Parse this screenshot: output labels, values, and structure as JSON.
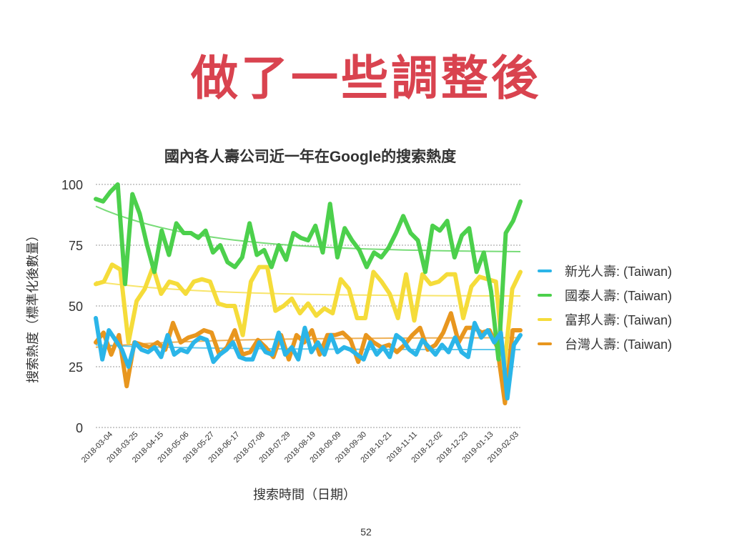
{
  "slide": {
    "title": "做了一些調整後",
    "page_number": "52"
  },
  "chart_data": {
    "type": "line",
    "title": "國內各人壽公司近一年在Google的搜索熱度",
    "xlabel": "搜索時間（日期）",
    "ylabel": "搜索熱度（標準化後數量）",
    "ylim": [
      0,
      100
    ],
    "yticks": [
      0,
      25,
      50,
      75,
      100
    ],
    "grid": true,
    "legend_position": "right",
    "x_tick_labels": [
      "2018-03-04",
      "2018-03-25",
      "2018-04-15",
      "2018-05-06",
      "2018-05-27",
      "2018-06-17",
      "2018-07-08",
      "2018-07-29",
      "2018-08-19",
      "2018-09-09",
      "2018-09-30",
      "2018-10-21",
      "2018-11-11",
      "2018-12-02",
      "2018-12-23",
      "2019-01-13",
      "2019-02-03"
    ],
    "series": [
      {
        "name": "新光人壽: (Taiwan)",
        "color": "#2bb5e8",
        "values": [
          45,
          28,
          40,
          36,
          32,
          25,
          35,
          32,
          31,
          33,
          29,
          38,
          30,
          32,
          31,
          35,
          37,
          36,
          27,
          30,
          32,
          35,
          29,
          28,
          28,
          35,
          31,
          30,
          39,
          30,
          33,
          28,
          41,
          31,
          35,
          30,
          38,
          31,
          33,
          32,
          30,
          28,
          35,
          30,
          33,
          29,
          38,
          36,
          32,
          30,
          36,
          33,
          30,
          34,
          31,
          37,
          31,
          29,
          43,
          37,
          40,
          35,
          39,
          12,
          34,
          38
        ]
      },
      {
        "name": "國泰人壽: (Taiwan)",
        "color": "#4cd04c",
        "values": [
          94,
          93,
          97,
          100,
          59,
          96,
          88,
          75,
          64,
          81,
          71,
          84,
          80,
          80,
          78,
          81,
          72,
          75,
          68,
          66,
          70,
          84,
          71,
          73,
          66,
          75,
          69,
          80,
          78,
          77,
          83,
          72,
          92,
          70,
          82,
          77,
          73,
          66,
          72,
          70,
          74,
          80,
          87,
          80,
          77,
          64,
          83,
          81,
          85,
          70,
          79,
          82,
          64,
          72,
          56,
          28,
          80,
          85,
          93
        ]
      },
      {
        "name": "富邦人壽: (Taiwan)",
        "color": "#f5dc3a",
        "values": [
          59,
          60,
          67,
          65,
          35,
          52,
          57,
          66,
          55,
          60,
          59,
          55,
          60,
          61,
          60,
          51,
          50,
          50,
          38,
          60,
          66,
          66,
          48,
          50,
          53,
          47,
          51,
          46,
          49,
          47,
          61,
          57,
          45,
          45,
          64,
          60,
          55,
          45,
          63,
          44,
          63,
          59,
          60,
          63,
          63,
          45,
          58,
          62,
          61,
          60,
          24,
          57,
          64
        ]
      },
      {
        "name": "台灣人壽: (Taiwan)",
        "color": "#e8961e",
        "values": [
          35,
          39,
          30,
          38,
          17,
          35,
          34,
          33,
          35,
          32,
          43,
          35,
          37,
          38,
          40,
          39,
          30,
          33,
          40,
          30,
          31,
          36,
          33,
          29,
          38,
          28,
          38,
          35,
          40,
          30,
          38,
          38,
          39,
          36,
          27,
          38,
          35,
          33,
          34,
          31,
          34,
          38,
          41,
          32,
          34,
          39,
          47,
          35,
          41,
          41,
          39,
          40,
          33,
          10,
          40,
          40
        ]
      }
    ],
    "trendlines": [
      {
        "series": "國泰人壽: (Taiwan)",
        "start": 91,
        "end": 72
      },
      {
        "series": "富邦人壽: (Taiwan)",
        "start": 60,
        "end": 54
      },
      {
        "series": "台灣人壽: (Taiwan)",
        "start": 33,
        "end": 37
      },
      {
        "series": "新光人壽: (Taiwan)",
        "start": 34,
        "end": 32
      }
    ]
  }
}
